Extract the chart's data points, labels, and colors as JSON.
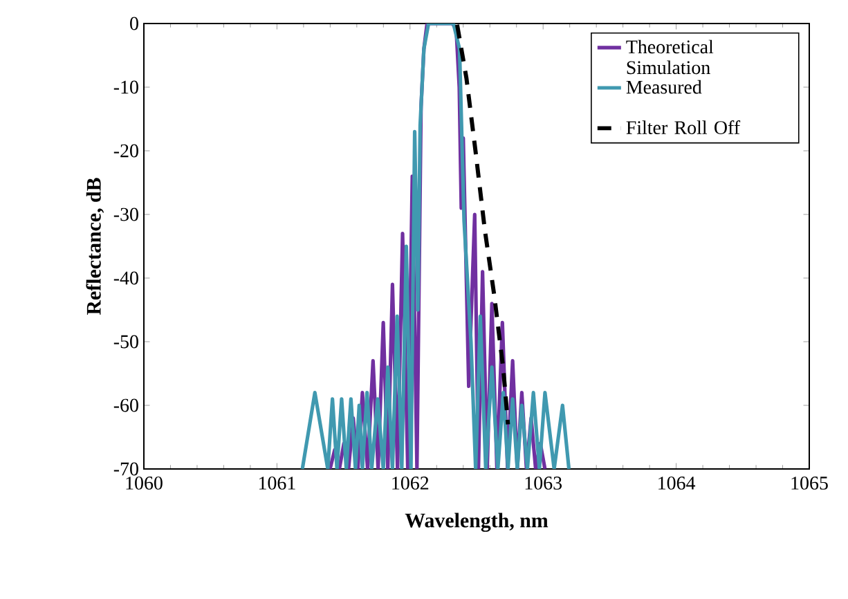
{
  "chart_data": {
    "type": "line",
    "xlabel": "Wavelength, nm",
    "ylabel": "Reflectance, dB",
    "xlim": [
      1060,
      1065
    ],
    "xticks": [
      1060,
      1061,
      1062,
      1063,
      1064,
      1065
    ],
    "ylim": [
      -70,
      0
    ],
    "yticks": [
      -70,
      -60,
      -50,
      -40,
      -30,
      -20,
      -10,
      0
    ],
    "legend": "top right",
    "marker": "none",
    "grid": false,
    "series": [
      {
        "name": "Theoretical Simulation",
        "color": "#7030a0",
        "line_style": "solid",
        "x": [
          1061.399,
          1061.434,
          1061.469,
          1061.503,
          1061.538,
          1061.573,
          1061.608,
          1061.642,
          1061.681,
          1061.722,
          1061.76,
          1061.799,
          1061.833,
          1061.868,
          1061.906,
          1061.944,
          1061.983,
          1062.017,
          1062.052,
          1062.083,
          1062.104,
          1062.128,
          1062.319,
          1062.347,
          1062.37,
          1062.385,
          1062.4,
          1062.441,
          1062.486,
          1062.514,
          1062.545,
          1062.58,
          1062.615,
          1062.653,
          1062.694,
          1062.733,
          1062.771,
          1062.806,
          1062.84,
          1062.875,
          1062.91,
          1062.944,
          1062.979,
          1063.014
        ],
        "values": [
          -70,
          -67,
          -70,
          -66,
          -70,
          -62,
          -70,
          -58,
          -70,
          -53,
          -70,
          -47,
          -70,
          -41,
          -70,
          -33,
          -70,
          -24,
          -70,
          -13,
          -4,
          0,
          0,
          -1,
          -10,
          -29,
          -18,
          -57,
          -30,
          -70,
          -39,
          -70,
          -44,
          -70,
          -47,
          -70,
          -53,
          -70,
          -58,
          -70,
          -62,
          -70,
          -66,
          -70
        ]
      },
      {
        "name": "Measured",
        "color": "#4099b0",
        "line_style": "solid",
        "x": [
          1061.191,
          1061.285,
          1061.382,
          1061.417,
          1061.451,
          1061.486,
          1061.521,
          1061.556,
          1061.59,
          1061.618,
          1061.642,
          1061.677,
          1061.712,
          1061.757,
          1061.799,
          1061.833,
          1061.868,
          1061.903,
          1061.938,
          1061.972,
          1062.007,
          1062.035,
          1062.059,
          1062.076,
          1062.104,
          1062.139,
          1062.326,
          1062.372,
          1062.406,
          1062.458,
          1062.493,
          1062.528,
          1062.569,
          1062.615,
          1062.66,
          1062.701,
          1062.736,
          1062.771,
          1062.806,
          1062.84,
          1062.882,
          1062.927,
          1062.972,
          1063.014,
          1063.083,
          1063.146,
          1063.194
        ],
        "values": [
          -70,
          -58,
          -70,
          -59,
          -70,
          -59,
          -70,
          -59,
          -70,
          -60,
          -70,
          -58,
          -70,
          -59,
          -70,
          -54,
          -70,
          -46,
          -70,
          -35,
          -70,
          -17,
          -45,
          -16,
          -4,
          0,
          0,
          -4,
          -31,
          -50,
          -70,
          -46,
          -70,
          -54,
          -70,
          -58,
          -70,
          -59,
          -70,
          -60,
          -70,
          -58,
          -70,
          -58,
          -70,
          -60,
          -70
        ]
      },
      {
        "name": "Filter Roll Off",
        "color": "#000000",
        "line_style": "dashed",
        "x": [
          1062.354,
          1062.424,
          1062.493,
          1062.5625,
          1062.632,
          1062.701,
          1062.736
        ],
        "values": [
          -0.2,
          -8.6,
          -20.2,
          -32.5,
          -42.6,
          -54.3,
          -63
        ]
      }
    ]
  }
}
